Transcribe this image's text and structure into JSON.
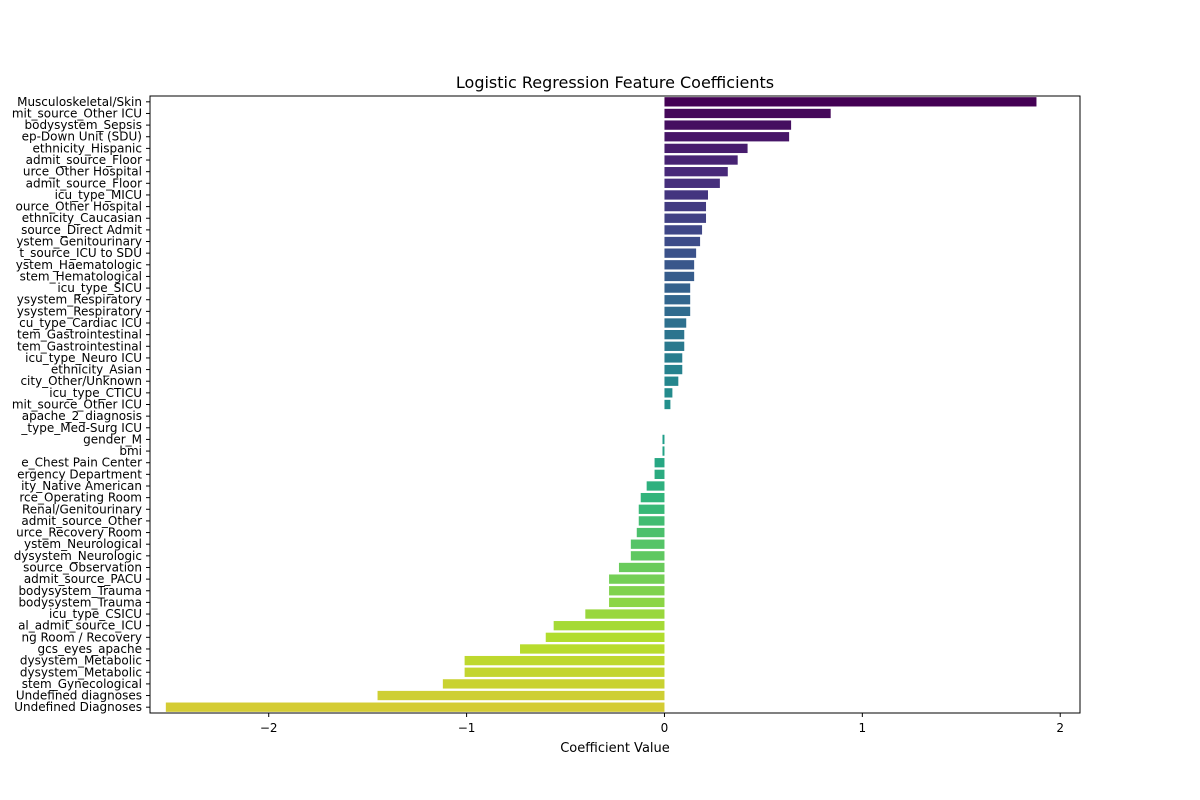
{
  "chart_data": {
    "type": "bar",
    "orientation": "horizontal",
    "title": "Logistic Regression Feature Coefficients",
    "xlabel": "Coefficient Value",
    "ylabel": "",
    "xlim": [
      -2.6,
      2.1
    ],
    "xticks": [
      -2,
      -1,
      0,
      1,
      2
    ],
    "xtick_labels": [
      "−2",
      "−1",
      "0",
      "1",
      "2"
    ],
    "grid": false,
    "palette": "viridis",
    "categories": [
      "Musculoskeletal/Skin",
      "mit_source_Other ICU",
      "bodysystem_Sepsis",
      "ep-Down Unit (SDU)",
      "ethnicity_Hispanic",
      "admit_source_Floor",
      "urce_Other Hospital",
      "admit_source_Floor",
      "icu_type_MICU",
      "ource_Other Hospital",
      "ethnicity_Caucasian",
      "source_Direct Admit",
      "ystem_Genitourinary",
      "t_source_ICU to SDU",
      "ystem_Haematologic",
      "stem_Hematological",
      "icu_type_SICU",
      "ysystem_Respiratory",
      "ysystem_Respiratory",
      "cu_type_Cardiac ICU",
      "tem_Gastrointestinal",
      "tem_Gastrointestinal",
      "icu_type_Neuro ICU",
      "ethnicity_Asian",
      "city_Other/Unknown",
      "icu_type_CTICU",
      "mit_source_Other ICU",
      "apache_2_diagnosis",
      "_type_Med-Surg ICU",
      "gender_M",
      "bmi",
      "e_Chest Pain Center",
      "ergency Department",
      "ity_Native American",
      "rce_Operating Room",
      "Renal/Genitourinary",
      "admit_source_Other",
      "urce_Recovery Room",
      "ystem_Neurological",
      "dysystem_Neurologic",
      "source_Observation",
      "admit_source_PACU",
      "bodysystem_Trauma",
      "bodysystem_Trauma",
      "icu_type_CSICU",
      "al_admit_source_ICU",
      "ng Room / Recovery",
      "gcs_eyes_apache",
      "dysystem_Metabolic",
      "dysystem_Metabolic",
      "stem_Gynecological",
      "Undefined diagnoses",
      "Undefined Diagnoses"
    ],
    "values": [
      1.88,
      0.84,
      0.64,
      0.63,
      0.42,
      0.37,
      0.32,
      0.28,
      0.22,
      0.21,
      0.21,
      0.19,
      0.18,
      0.16,
      0.15,
      0.15,
      0.13,
      0.13,
      0.13,
      0.11,
      0.1,
      0.1,
      0.09,
      0.09,
      0.07,
      0.04,
      0.03,
      0.0,
      0.0,
      -0.01,
      -0.01,
      -0.05,
      -0.05,
      -0.09,
      -0.12,
      -0.13,
      -0.13,
      -0.14,
      -0.17,
      -0.17,
      -0.23,
      -0.28,
      -0.28,
      -0.28,
      -0.4,
      -0.56,
      -0.6,
      -0.73,
      -1.01,
      -1.01,
      -1.12,
      -1.45,
      -2.52
    ]
  }
}
